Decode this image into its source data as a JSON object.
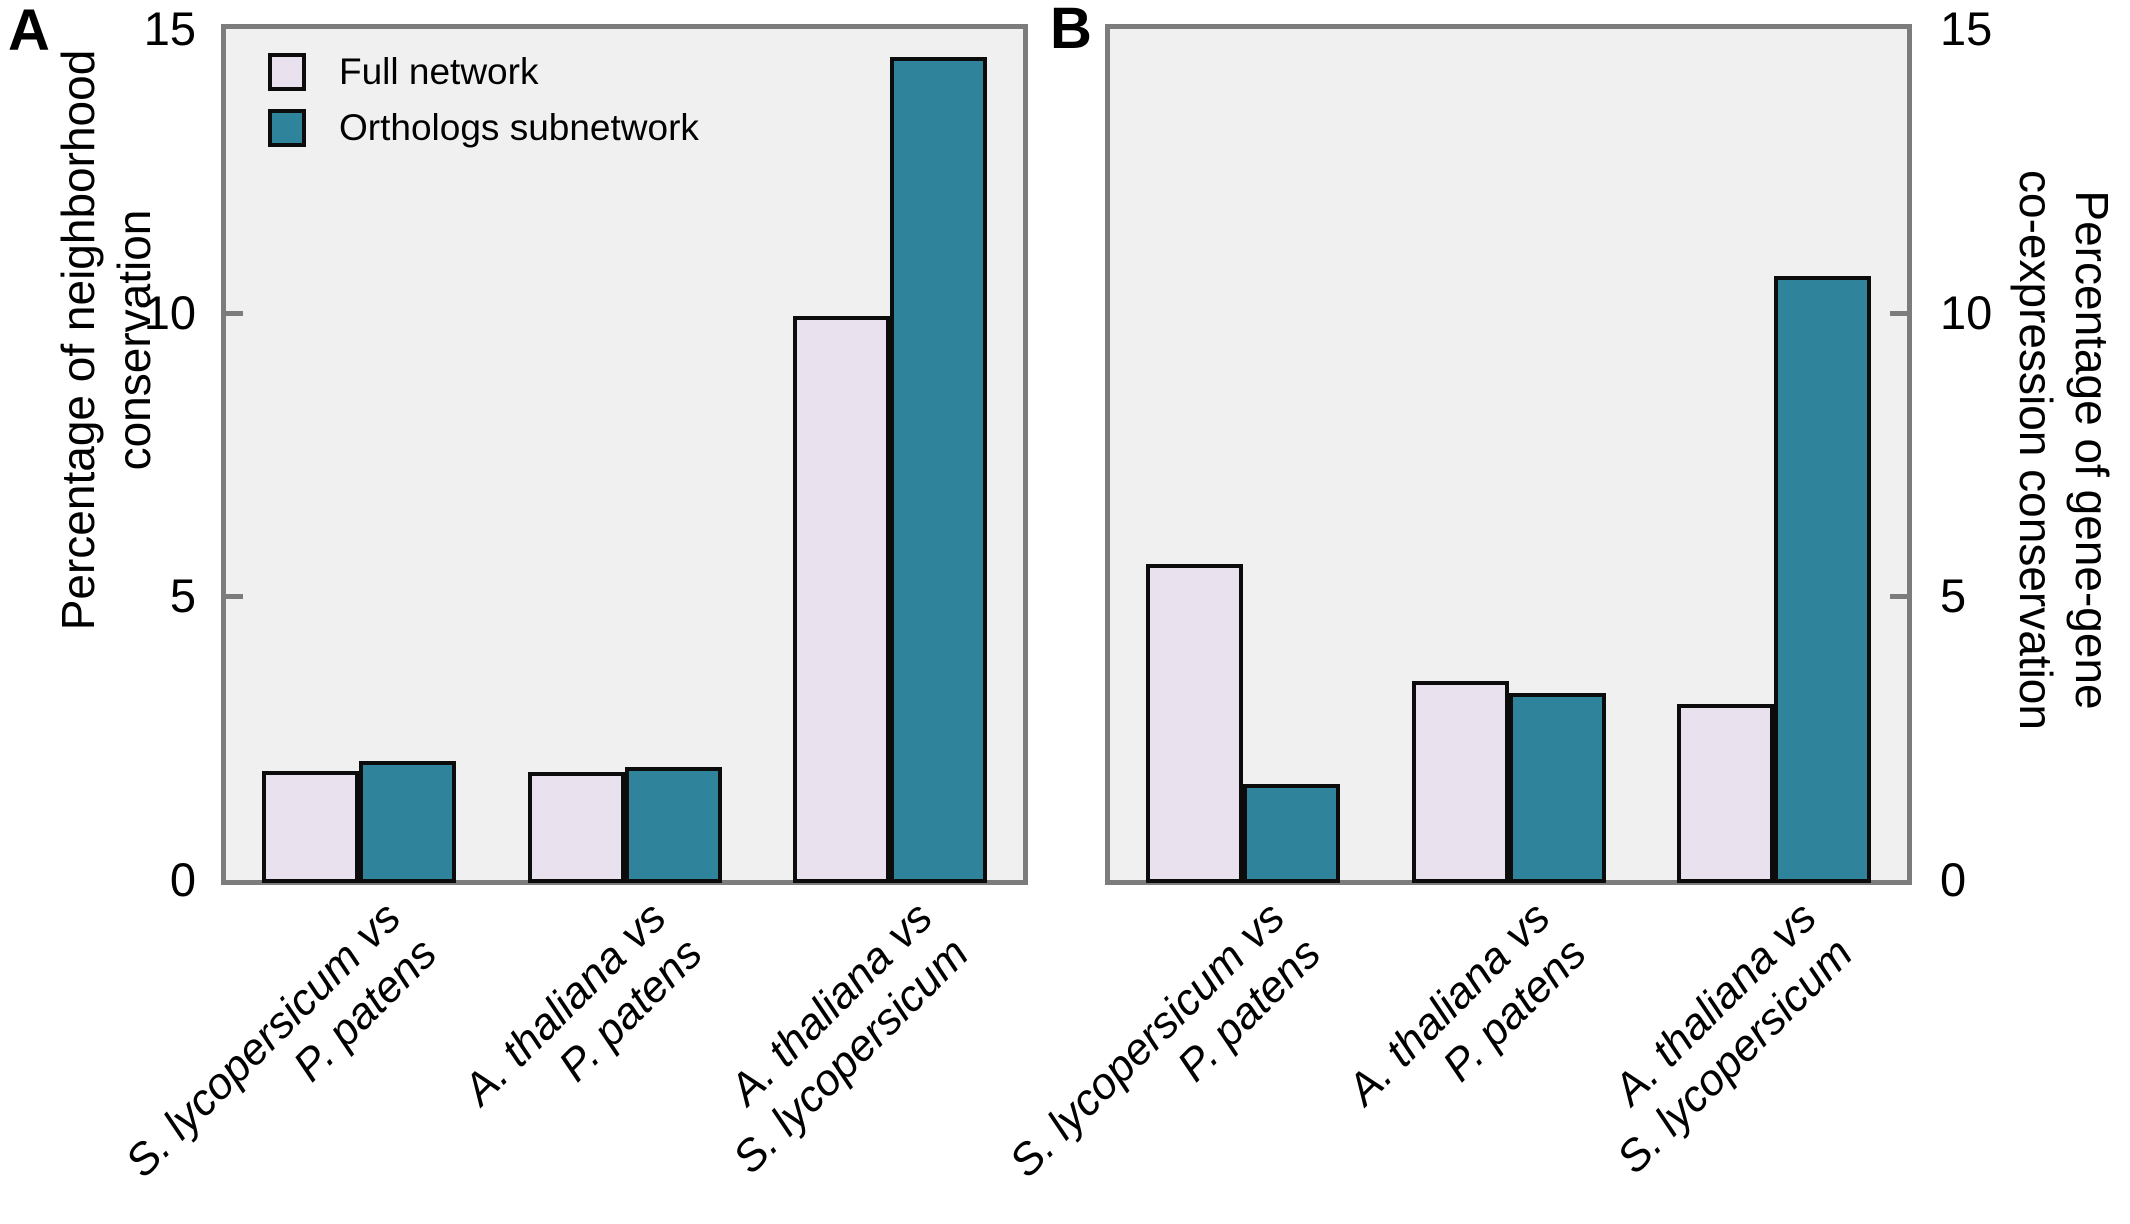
{
  "panels": [
    {
      "label": "A",
      "axis_side": "left",
      "y_axis_title_lines": [
        "Percentage of neighborhood",
        "conservation"
      ]
    },
    {
      "label": "B",
      "axis_side": "right",
      "y_axis_title_lines": [
        "Percentage of gene-gene",
        "co-expression conservation"
      ]
    }
  ],
  "legend": {
    "items": [
      {
        "label": "Full network",
        "color": "#e9e2ee"
      },
      {
        "label": "Orthologs subnetwork",
        "color": "#2f849b"
      }
    ]
  },
  "colors": {
    "full_network": "#e9e2ee",
    "orthologs_subnetwork": "#2f849b",
    "bar_outline": "#0c0c0c",
    "plot_background": "#f1f0f1",
    "axis_frame": "#7c7c7c",
    "text": "#000000"
  },
  "chart_data": [
    {
      "type": "bar",
      "panel": "A",
      "title": "",
      "ylabel": "Percentage of neighborhood conservation",
      "xlabel": "",
      "categories": [
        "S. lycopersicum vs P. patens",
        "A. thaliana vs P. patens",
        "A. thaliana vs S. lycopersicum"
      ],
      "category_lines": [
        [
          "S. lycopersicum vs",
          "P. patens"
        ],
        [
          "A. thaliana vs",
          "P. patens"
        ],
        [
          "A. thaliana vs",
          "S. lycopersicum"
        ]
      ],
      "series": [
        {
          "name": "Full network",
          "values": [
            1.93,
            1.91,
            9.95
          ]
        },
        {
          "name": "Orthologs subnetwork",
          "values": [
            2.1,
            2.0,
            14.5
          ]
        }
      ],
      "ylim": [
        0,
        15
      ],
      "yticks": [
        0,
        5,
        10,
        15
      ],
      "grid": false,
      "legend_position": "top-left-inside"
    },
    {
      "type": "bar",
      "panel": "B",
      "title": "",
      "ylabel": "Percentage of gene-gene co-expression conservation",
      "xlabel": "",
      "categories": [
        "S. lycopersicum vs P. patens",
        "A. thaliana vs P. patens",
        "A. thaliana vs S. lycopersicum"
      ],
      "category_lines": [
        [
          "S. lycopersicum vs",
          "P. patens"
        ],
        [
          "A. thaliana vs",
          "P. patens"
        ],
        [
          "A. thaliana vs",
          "S. lycopersicum"
        ]
      ],
      "series": [
        {
          "name": "Full network",
          "values": [
            5.57,
            3.5,
            3.1
          ]
        },
        {
          "name": "Orthologs subnetwork",
          "values": [
            1.7,
            3.3,
            10.65
          ]
        }
      ],
      "ylim": [
        0,
        15
      ],
      "yticks": [
        0,
        5,
        10,
        15
      ],
      "grid": false,
      "legend_position": "none"
    }
  ]
}
